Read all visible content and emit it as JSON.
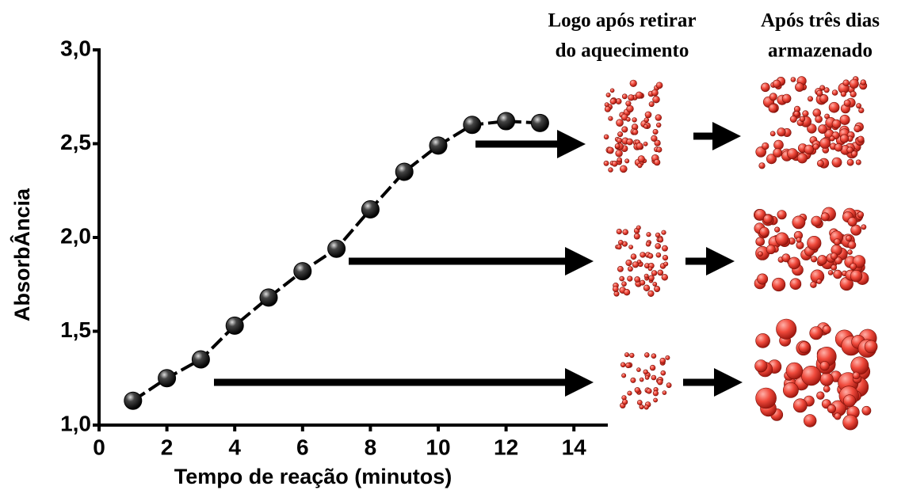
{
  "chart_data": {
    "type": "line",
    "xlabel": "Tempo de reação (minutos)",
    "ylabel": "AbsorbÂncia",
    "x": [
      1,
      2,
      3,
      4,
      5,
      6,
      7,
      8,
      9,
      10,
      11,
      12,
      13
    ],
    "series": [
      {
        "color": "#000000",
        "values": [
          1.13,
          1.25,
          1.35,
          1.53,
          1.68,
          1.82,
          1.94,
          2.15,
          2.35,
          2.49,
          2.6,
          2.62,
          2.61
        ]
      }
    ],
    "xlim": [
      0,
      15
    ],
    "xticks": [
      0,
      2,
      4,
      6,
      8,
      10,
      12,
      14
    ],
    "ylim": [
      1,
      3
    ],
    "yticks": [
      {
        "value": 1.0,
        "label": "1,0"
      },
      {
        "value": 1.5,
        "label": "1,5"
      },
      {
        "value": 2.0,
        "label": "2,0"
      },
      {
        "value": 2.5,
        "label": "2,5"
      },
      {
        "value": 3.0,
        "label": "3,0"
      }
    ],
    "panel_titles": [
      [
        "Logo após retirar",
        "do aquecimento"
      ],
      [
        "Após três dias",
        "armazenado"
      ]
    ]
  }
}
